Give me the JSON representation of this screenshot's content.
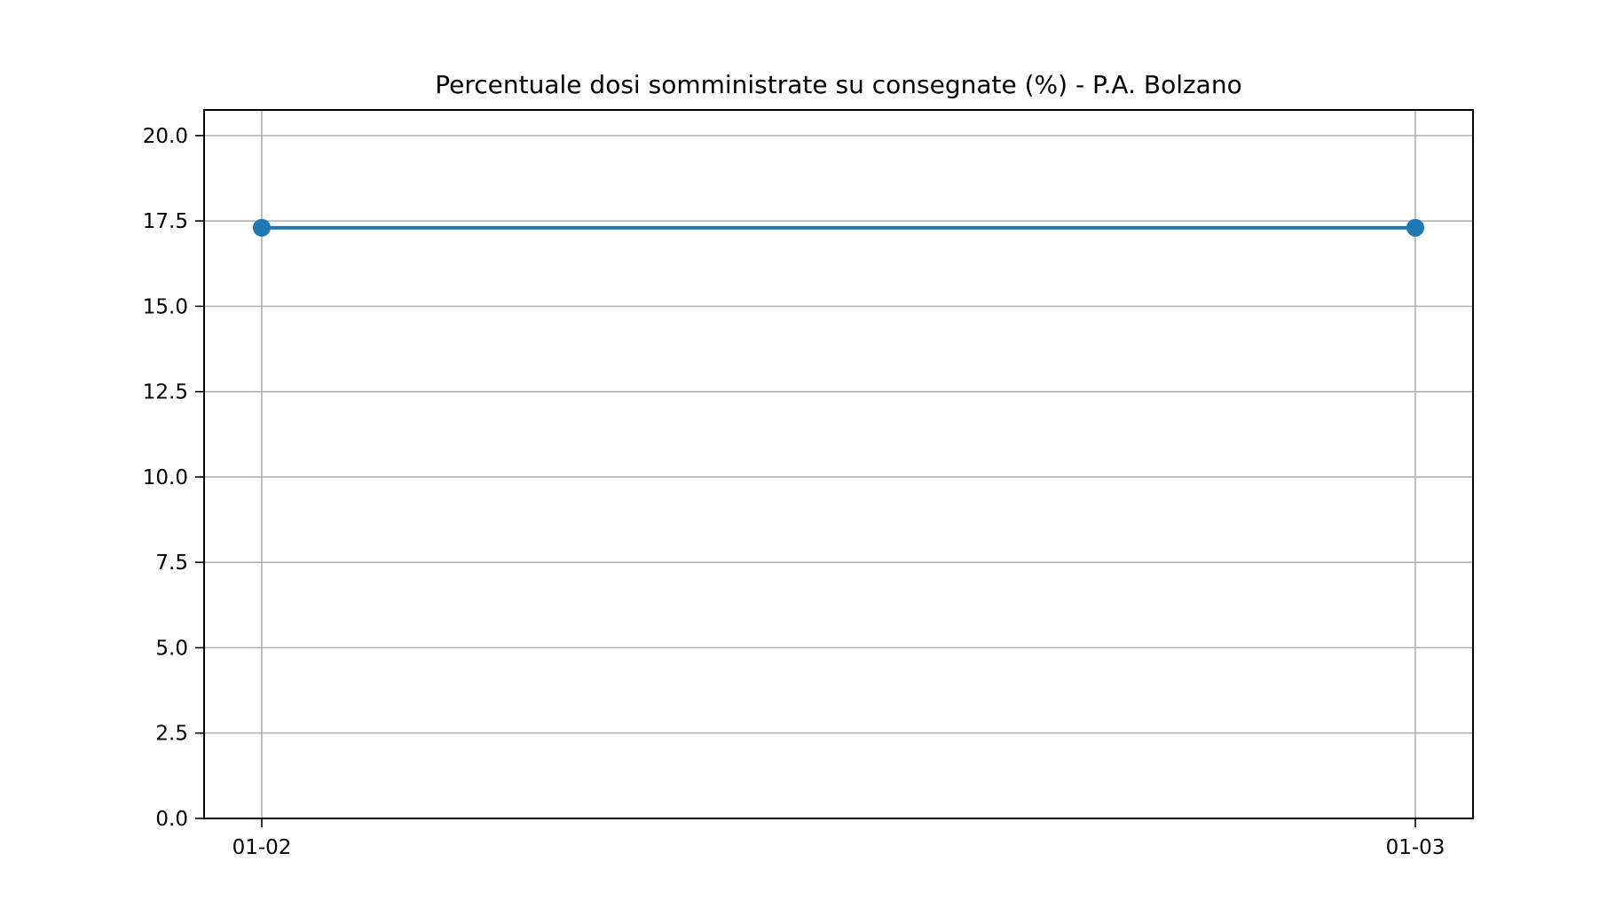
{
  "chart_data": {
    "type": "line",
    "title": "Percentuale dosi somministrate su consegnate (%) - P.A. Bolzano",
    "xlabel": "",
    "ylabel": "",
    "x": [
      "01-02",
      "01-03"
    ],
    "series": [
      {
        "values": [
          17.3,
          17.3
        ],
        "color": "#1f77b4",
        "marker": "circle"
      }
    ],
    "ylim": [
      0,
      20.75
    ],
    "yticks": [
      0.0,
      2.5,
      5.0,
      7.5,
      10.0,
      12.5,
      15.0,
      17.5,
      20.0
    ],
    "ytick_labels": [
      "0.0",
      "2.5",
      "5.0",
      "7.5",
      "10.0",
      "12.5",
      "15.0",
      "17.5",
      "20.0"
    ],
    "grid": true,
    "legend": "none"
  },
  "colors": {
    "series": "#1f77b4",
    "grid": "#b0b0b0",
    "axes": "#000000",
    "background": "#ffffff"
  }
}
